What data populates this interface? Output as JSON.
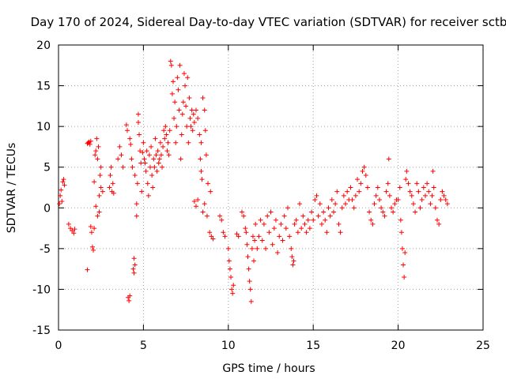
{
  "chart_data": {
    "type": "scatter",
    "title": "Day 170 of 2024, Sidereal Day-to-day VTEC variation (SDTVAR) for receiver sctb",
    "xlabel": "GPS time / hours",
    "ylabel": "SDTVAR / TECUs",
    "xlim": [
      0,
      25
    ],
    "ylim": [
      -15,
      20
    ],
    "xticks": [
      0,
      5,
      10,
      15,
      20,
      25
    ],
    "yticks": [
      -15,
      -10,
      -5,
      0,
      5,
      10,
      15,
      20
    ],
    "grid": true,
    "marker": "plus",
    "color": "#ff0000",
    "series": [
      {
        "name": "SDTVAR",
        "points": [
          [
            0.05,
            0.5
          ],
          [
            0.1,
            1.5
          ],
          [
            0.15,
            2.2
          ],
          [
            0.2,
            0.8
          ],
          [
            0.25,
            3.2
          ],
          [
            0.3,
            3.5
          ],
          [
            0.35,
            2.8
          ],
          [
            0.6,
            -2.0
          ],
          [
            0.7,
            -2.5
          ],
          [
            0.8,
            -2.8
          ],
          [
            0.9,
            -3.1
          ],
          [
            0.95,
            -2.6
          ],
          [
            1.7,
            -7.6
          ],
          [
            1.7,
            7.9
          ],
          [
            1.75,
            8.0
          ],
          [
            1.8,
            8.1
          ],
          [
            1.85,
            7.8
          ],
          [
            1.9,
            8.2
          ],
          [
            1.9,
            -2.3
          ],
          [
            1.95,
            -3.0
          ],
          [
            2.0,
            -4.8
          ],
          [
            2.05,
            -5.2
          ],
          [
            2.1,
            -2.5
          ],
          [
            2.1,
            3.2
          ],
          [
            2.15,
            6.5
          ],
          [
            2.2,
            7.0
          ],
          [
            2.2,
            0.2
          ],
          [
            2.25,
            8.5
          ],
          [
            2.3,
            -1.0
          ],
          [
            2.3,
            6.0
          ],
          [
            2.35,
            7.5
          ],
          [
            2.4,
            1.5
          ],
          [
            2.4,
            -0.5
          ],
          [
            2.45,
            4.0
          ],
          [
            2.5,
            5.0
          ],
          [
            2.5,
            2.5
          ],
          [
            2.6,
            2.0
          ],
          [
            3.0,
            2.5
          ],
          [
            3.05,
            4.0
          ],
          [
            3.1,
            5.0
          ],
          [
            3.15,
            2.0
          ],
          [
            3.2,
            3.0
          ],
          [
            3.25,
            1.8
          ],
          [
            3.5,
            6.0
          ],
          [
            3.6,
            7.5
          ],
          [
            3.7,
            6.5
          ],
          [
            3.8,
            5.0
          ],
          [
            4.0,
            10.2
          ],
          [
            4.05,
            9.5
          ],
          [
            4.1,
            -11.0
          ],
          [
            4.15,
            -11.4
          ],
          [
            4.2,
            -10.8
          ],
          [
            4.2,
            8.5
          ],
          [
            4.25,
            7.8
          ],
          [
            4.3,
            6.0
          ],
          [
            4.35,
            5.0
          ],
          [
            4.4,
            -7.5
          ],
          [
            4.45,
            -8.0
          ],
          [
            4.45,
            -6.2
          ],
          [
            4.5,
            -7.0
          ],
          [
            4.5,
            4.0
          ],
          [
            4.6,
            0.5
          ],
          [
            4.6,
            -1.0
          ],
          [
            4.65,
            3.0
          ],
          [
            4.7,
            10.5
          ],
          [
            4.7,
            11.5
          ],
          [
            4.75,
            9.0
          ],
          [
            4.8,
            7.0
          ],
          [
            4.85,
            5.5
          ],
          [
            4.9,
            2.0
          ],
          [
            4.95,
            6.8
          ],
          [
            5.0,
            8.0
          ],
          [
            5.05,
            6.0
          ],
          [
            5.1,
            5.5
          ],
          [
            5.15,
            4.5
          ],
          [
            5.2,
            7.0
          ],
          [
            5.25,
            3.0
          ],
          [
            5.3,
            1.5
          ],
          [
            5.35,
            6.5
          ],
          [
            5.4,
            5.0
          ],
          [
            5.45,
            7.5
          ],
          [
            5.5,
            4.0
          ],
          [
            5.55,
            2.5
          ],
          [
            5.6,
            6.0
          ],
          [
            5.65,
            5.0
          ],
          [
            5.7,
            8.5
          ],
          [
            5.75,
            6.5
          ],
          [
            5.8,
            4.5
          ],
          [
            5.85,
            7.0
          ],
          [
            5.9,
            5.5
          ],
          [
            5.95,
            6.0
          ],
          [
            6.0,
            8.0
          ],
          [
            6.05,
            6.5
          ],
          [
            6.1,
            5.0
          ],
          [
            6.15,
            7.5
          ],
          [
            6.2,
            9.5
          ],
          [
            6.25,
            8.5
          ],
          [
            6.3,
            10.0
          ],
          [
            6.35,
            9.0
          ],
          [
            6.4,
            7.0
          ],
          [
            6.45,
            8.0
          ],
          [
            6.5,
            6.5
          ],
          [
            6.55,
            9.5
          ],
          [
            6.6,
            18.0
          ],
          [
            6.65,
            17.5
          ],
          [
            6.7,
            14.0
          ],
          [
            6.75,
            15.5
          ],
          [
            6.8,
            11.0
          ],
          [
            6.85,
            13.0
          ],
          [
            6.9,
            8.0
          ],
          [
            6.95,
            10.0
          ],
          [
            7.0,
            16.0
          ],
          [
            7.05,
            14.5
          ],
          [
            7.1,
            12.0
          ],
          [
            7.15,
            17.5
          ],
          [
            7.2,
            6.0
          ],
          [
            7.25,
            9.0
          ],
          [
            7.3,
            11.5
          ],
          [
            7.35,
            13.0
          ],
          [
            7.4,
            16.5
          ],
          [
            7.45,
            15.0
          ],
          [
            7.5,
            12.5
          ],
          [
            7.55,
            10.0
          ],
          [
            7.6,
            16.0
          ],
          [
            7.65,
            8.0
          ],
          [
            7.7,
            13.5
          ],
          [
            7.75,
            11.0
          ],
          [
            7.8,
            10.0
          ],
          [
            7.85,
            12.0
          ],
          [
            7.9,
            9.5
          ],
          [
            7.95,
            11.5
          ],
          [
            8.0,
            10.5
          ],
          [
            8.1,
            12.0
          ],
          [
            8.2,
            11.0
          ],
          [
            8.3,
            9.0
          ],
          [
            8.4,
            8.0
          ],
          [
            8.5,
            13.5
          ],
          [
            8.6,
            12.0
          ],
          [
            8.65,
            9.5
          ],
          [
            8.0,
            0.8
          ],
          [
            8.1,
            0.2
          ],
          [
            8.2,
            1.0
          ],
          [
            8.35,
            6.0
          ],
          [
            8.4,
            4.5
          ],
          [
            8.45,
            3.5
          ],
          [
            8.5,
            -0.5
          ],
          [
            8.6,
            0.5
          ],
          [
            8.7,
            6.5
          ],
          [
            8.75,
            -1.0
          ],
          [
            8.8,
            3.0
          ],
          [
            8.9,
            -3.0
          ],
          [
            8.95,
            2.0
          ],
          [
            9.0,
            -3.5
          ],
          [
            9.1,
            -3.8
          ],
          [
            9.5,
            -1.0
          ],
          [
            9.6,
            -1.5
          ],
          [
            9.7,
            -3.0
          ],
          [
            9.8,
            -3.5
          ],
          [
            10.0,
            -5.0
          ],
          [
            10.05,
            -6.5
          ],
          [
            10.1,
            -7.5
          ],
          [
            10.15,
            -8.5
          ],
          [
            10.2,
            -10.0
          ],
          [
            10.25,
            -10.5
          ],
          [
            10.3,
            -9.5
          ],
          [
            10.5,
            -3.2
          ],
          [
            10.6,
            -3.5
          ],
          [
            10.8,
            -0.5
          ],
          [
            10.9,
            -1.0
          ],
          [
            11.0,
            -2.5
          ],
          [
            11.05,
            -3.0
          ],
          [
            11.1,
            -4.5
          ],
          [
            11.15,
            -6.0
          ],
          [
            11.2,
            -7.5
          ],
          [
            11.25,
            -9.0
          ],
          [
            11.3,
            -10.0
          ],
          [
            11.35,
            -11.5
          ],
          [
            11.4,
            -5.0
          ],
          [
            11.45,
            -3.5
          ],
          [
            11.5,
            -6.5
          ],
          [
            11.55,
            -4.0
          ],
          [
            11.6,
            -2.0
          ],
          [
            11.7,
            -5.0
          ],
          [
            11.8,
            -3.5
          ],
          [
            11.9,
            -1.5
          ],
          [
            12.0,
            -4.0
          ],
          [
            12.1,
            -2.0
          ],
          [
            12.2,
            -5.0
          ],
          [
            12.3,
            -1.0
          ],
          [
            12.4,
            -3.0
          ],
          [
            12.5,
            -0.5
          ],
          [
            12.6,
            -4.5
          ],
          [
            12.7,
            -2.5
          ],
          [
            12.8,
            -1.5
          ],
          [
            12.9,
            -5.5
          ],
          [
            13.0,
            -3.5
          ],
          [
            13.1,
            -2.0
          ],
          [
            13.2,
            -4.0
          ],
          [
            13.3,
            -1.0
          ],
          [
            13.4,
            -2.5
          ],
          [
            13.5,
            0.0
          ],
          [
            13.6,
            -3.5
          ],
          [
            13.7,
            -5.0
          ],
          [
            13.75,
            -6.0
          ],
          [
            13.8,
            -7.0
          ],
          [
            13.85,
            -6.5
          ],
          [
            13.9,
            -2.0
          ],
          [
            14.0,
            -1.5
          ],
          [
            14.1,
            -3.0
          ],
          [
            14.2,
            0.5
          ],
          [
            14.3,
            -2.5
          ],
          [
            14.4,
            -1.0
          ],
          [
            14.5,
            -2.0
          ],
          [
            14.6,
            -3.0
          ],
          [
            14.7,
            -1.5
          ],
          [
            14.8,
            -2.5
          ],
          [
            14.9,
            -0.5
          ],
          [
            15.0,
            -1.5
          ],
          [
            15.1,
            1.0
          ],
          [
            15.2,
            1.5
          ],
          [
            15.3,
            -1.0
          ],
          [
            15.4,
            0.5
          ],
          [
            15.5,
            -2.0
          ],
          [
            15.6,
            -0.5
          ],
          [
            15.7,
            -1.5
          ],
          [
            15.8,
            -3.0
          ],
          [
            15.9,
            0.0
          ],
          [
            16.0,
            -1.0
          ],
          [
            16.1,
            1.0
          ],
          [
            16.2,
            -0.5
          ],
          [
            16.3,
            0.5
          ],
          [
            16.4,
            2.0
          ],
          [
            16.5,
            -2.0
          ],
          [
            16.6,
            -3.0
          ],
          [
            16.7,
            0.0
          ],
          [
            16.8,
            1.5
          ],
          [
            16.9,
            0.5
          ],
          [
            17.0,
            2.0
          ],
          [
            17.1,
            1.0
          ],
          [
            17.2,
            2.5
          ],
          [
            17.3,
            1.0
          ],
          [
            17.4,
            0.0
          ],
          [
            17.5,
            1.5
          ],
          [
            17.6,
            3.5
          ],
          [
            17.7,
            2.0
          ],
          [
            17.8,
            3.0
          ],
          [
            17.9,
            4.5
          ],
          [
            18.0,
            5.0
          ],
          [
            18.1,
            4.0
          ],
          [
            18.2,
            2.5
          ],
          [
            18.3,
            -0.5
          ],
          [
            18.4,
            -1.5
          ],
          [
            18.5,
            -2.0
          ],
          [
            18.6,
            0.5
          ],
          [
            18.7,
            1.5
          ],
          [
            18.8,
            2.5
          ],
          [
            18.9,
            1.0
          ],
          [
            19.0,
            0.0
          ],
          [
            19.1,
            -0.5
          ],
          [
            19.2,
            -1.0
          ],
          [
            19.3,
            2.0
          ],
          [
            19.4,
            3.0
          ],
          [
            19.45,
            6.0
          ],
          [
            19.5,
            1.5
          ],
          [
            19.6,
            0.0
          ],
          [
            19.7,
            -0.5
          ],
          [
            19.8,
            0.5
          ],
          [
            19.9,
            1.0
          ],
          [
            20.0,
            1.0
          ],
          [
            20.1,
            2.5
          ],
          [
            20.15,
            -1.5
          ],
          [
            20.2,
            -3.0
          ],
          [
            20.25,
            -5.0
          ],
          [
            20.3,
            -7.0
          ],
          [
            20.35,
            -8.5
          ],
          [
            20.4,
            -5.5
          ],
          [
            20.45,
            3.5
          ],
          [
            20.5,
            4.5
          ],
          [
            20.6,
            3.0
          ],
          [
            20.7,
            2.0
          ],
          [
            20.8,
            1.5
          ],
          [
            20.9,
            0.5
          ],
          [
            21.0,
            -0.5
          ],
          [
            21.1,
            3.0
          ],
          [
            21.2,
            2.0
          ],
          [
            21.3,
            0.0
          ],
          [
            21.4,
            1.0
          ],
          [
            21.5,
            2.5
          ],
          [
            21.6,
            1.5
          ],
          [
            21.7,
            3.0
          ],
          [
            21.8,
            2.0
          ],
          [
            21.9,
            0.5
          ],
          [
            22.0,
            1.5
          ],
          [
            22.05,
            4.5
          ],
          [
            22.1,
            2.5
          ],
          [
            22.2,
            0.0
          ],
          [
            22.3,
            -1.5
          ],
          [
            22.4,
            -2.0
          ],
          [
            22.5,
            1.0
          ],
          [
            22.6,
            2.0
          ],
          [
            22.7,
            1.5
          ],
          [
            22.8,
            1.0
          ],
          [
            22.9,
            0.5
          ]
        ]
      }
    ]
  }
}
